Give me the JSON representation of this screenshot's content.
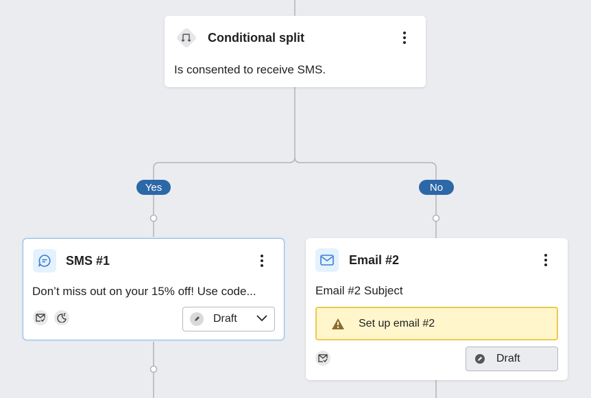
{
  "split": {
    "title": "Conditional split",
    "condition": "Is consented to receive SMS.",
    "icon": "split-arrows-icon"
  },
  "branches": {
    "yes": "Yes",
    "no": "No"
  },
  "sms": {
    "title": "SMS #1",
    "body": "Don’t miss out on your 15% off! Use code...",
    "status": "Draft",
    "icons": [
      "sms-chat-icon",
      "mail-check-icon",
      "quiet-hours-moon-icon"
    ]
  },
  "email": {
    "title": "Email #2",
    "subject": "Email #2 Subject",
    "warning": "Set up email #2",
    "status": "Draft",
    "icons": [
      "envelope-icon",
      "mail-check-icon",
      "warning-icon"
    ]
  },
  "colors": {
    "accent": "#2c68a8",
    "warning_bg": "#fff6cc",
    "warning_border": "#ecc94b",
    "canvas": "#ebecef"
  }
}
